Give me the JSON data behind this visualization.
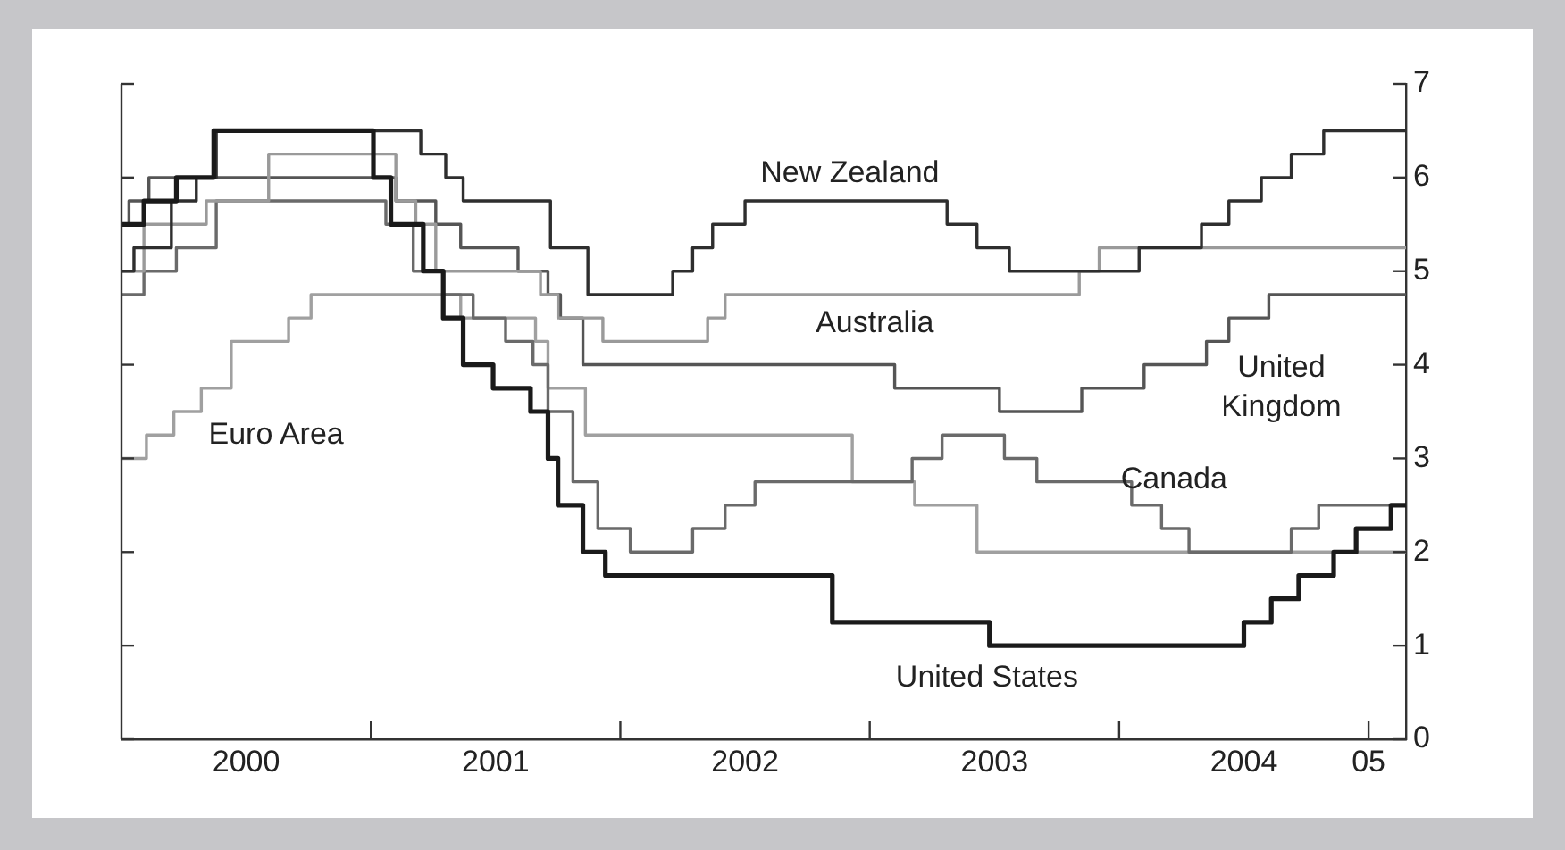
{
  "chart_data": {
    "type": "step",
    "xlim": [
      2000,
      2005.15
    ],
    "ylim": [
      0,
      7
    ],
    "yticks": [
      0,
      1,
      2,
      3,
      4,
      5,
      6,
      7
    ],
    "xticks": [
      {
        "value": 2000.5,
        "label": "2000"
      },
      {
        "value": 2001,
        "label": null
      },
      {
        "value": 2001.5,
        "label": "2001"
      },
      {
        "value": 2002,
        "label": null
      },
      {
        "value": 2002.5,
        "label": "2002"
      },
      {
        "value": 2003,
        "label": null
      },
      {
        "value": 2003.5,
        "label": "2003"
      },
      {
        "value": 2004,
        "label": null
      },
      {
        "value": 2004.5,
        "label": "2004"
      },
      {
        "value": 2005,
        "label": "05"
      }
    ],
    "series": [
      {
        "name": "United States",
        "color": "#1a1a1a",
        "x": [
          2000,
          2000.09,
          2000.22,
          2000.37,
          2001.01,
          2001.08,
          2001.21,
          2001.29,
          2001.37,
          2001.49,
          2001.64,
          2001.71,
          2001.75,
          2001.85,
          2001.94,
          2002.85,
          2003.48,
          2004.5,
          2004.61,
          2004.72,
          2004.86,
          2004.95,
          2005.09,
          2005.15
        ],
        "values": [
          5.5,
          5.75,
          6,
          6.5,
          6,
          5.5,
          5,
          4.5,
          4,
          3.75,
          3.5,
          3,
          2.5,
          2,
          1.75,
          1.25,
          1,
          1.25,
          1.5,
          1.75,
          2,
          2.25,
          2.5,
          2.5
        ]
      },
      {
        "name": "New Zealand",
        "color": "#2e2e2e",
        "x": [
          2000,
          2000.05,
          2000.2,
          2000.3,
          2000.38,
          2001.2,
          2001.3,
          2001.37,
          2001.72,
          2001.87,
          2002.21,
          2002.29,
          2002.37,
          2002.5,
          2003.31,
          2003.43,
          2003.56,
          2004.08,
          2004.33,
          2004.44,
          2004.57,
          2004.69,
          2004.82,
          2005.15
        ],
        "values": [
          5,
          5.25,
          5.75,
          6,
          6.5,
          6.25,
          6,
          5.75,
          5.25,
          4.75,
          5,
          5.25,
          5.5,
          5.75,
          5.5,
          5.25,
          5,
          5.25,
          5.5,
          5.75,
          6,
          6.25,
          6.5,
          6.5
        ]
      },
      {
        "name": "Australia",
        "color": "#9a9a9a",
        "x": [
          2000,
          2000.09,
          2000.34,
          2000.59,
          2001.1,
          2001.18,
          2001.26,
          2001.68,
          2001.75,
          2001.93,
          2002.35,
          2002.42,
          2003.84,
          2003.92,
          2005.15
        ],
        "values": [
          5,
          5.5,
          5.75,
          6.25,
          5.75,
          5.5,
          5,
          4.75,
          4.5,
          4.25,
          4.5,
          4.75,
          5,
          5.25,
          5.25
        ]
      },
      {
        "name": "United Kingdom",
        "color": "#555555",
        "x": [
          2000,
          2000.03,
          2000.11,
          2001.1,
          2001.26,
          2001.36,
          2001.59,
          2001.71,
          2001.76,
          2001.85,
          2003.1,
          2003.52,
          2003.85,
          2004.1,
          2004.35,
          2004.44,
          2004.6,
          2005.15
        ],
        "values": [
          5.5,
          5.75,
          6,
          5.75,
          5.5,
          5.25,
          5,
          4.75,
          4.5,
          4,
          3.75,
          3.5,
          3.75,
          4,
          4.25,
          4.5,
          4.75,
          4.75
        ]
      },
      {
        "name": "Canada",
        "color": "#6a6a6a",
        "x": [
          2000,
          2000.09,
          2000.22,
          2000.38,
          2001.06,
          2001.17,
          2001.29,
          2001.41,
          2001.54,
          2001.65,
          2001.71,
          2001.81,
          2001.91,
          2002.04,
          2002.29,
          2002.42,
          2002.54,
          2003.17,
          2003.29,
          2003.54,
          2003.67,
          2004.05,
          2004.17,
          2004.28,
          2004.69,
          2004.8,
          2005.15
        ],
        "values": [
          4.75,
          5,
          5.25,
          5.75,
          5.5,
          5,
          4.75,
          4.5,
          4.25,
          4,
          3.5,
          2.75,
          2.25,
          2,
          2.25,
          2.5,
          2.75,
          3,
          3.25,
          3,
          2.75,
          2.5,
          2.25,
          2,
          2.25,
          2.5,
          2.5
        ]
      },
      {
        "name": "Euro Area",
        "color": "#a0a0a0",
        "x": [
          2000,
          2000.1,
          2000.21,
          2000.32,
          2000.44,
          2000.67,
          2000.76,
          2001.36,
          2001.66,
          2001.71,
          2001.86,
          2002.93,
          2003.18,
          2003.43,
          2005.15
        ],
        "values": [
          3,
          3.25,
          3.5,
          3.75,
          4.25,
          4.5,
          4.75,
          4.5,
          4.25,
          3.75,
          3.25,
          2.75,
          2.5,
          2,
          2
        ]
      }
    ]
  }
}
